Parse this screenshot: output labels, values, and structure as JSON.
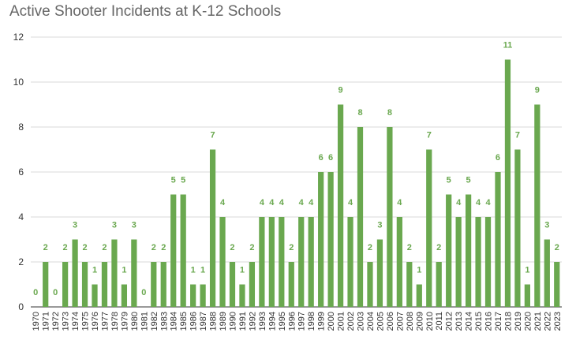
{
  "chart_data": {
    "type": "bar",
    "title": "Active Shooter Incidents at K-12 Schools",
    "xlabel": "",
    "ylabel": "",
    "ylim": [
      0,
      12
    ],
    "yticks": [
      0,
      2,
      4,
      6,
      8,
      10,
      12
    ],
    "grid": true,
    "legend": "none",
    "bar_color": "#6aa84f",
    "label_color": "#6aa84f",
    "grid_color": "#d9d9d9",
    "categories": [
      "1970",
      "1971",
      "1972",
      "1973",
      "1974",
      "1975",
      "1976",
      "1977",
      "1978",
      "1979",
      "1980",
      "1981",
      "1982",
      "1983",
      "1984",
      "1985",
      "1986",
      "1987",
      "1988",
      "1989",
      "1990",
      "1991",
      "1992",
      "1993",
      "1994",
      "1995",
      "1996",
      "1997",
      "1998",
      "1999",
      "2000",
      "2001",
      "2002",
      "2003",
      "2004",
      "2005",
      "2006",
      "2007",
      "2008",
      "2009",
      "2010",
      "2011",
      "2012",
      "2013",
      "2014",
      "2015",
      "2016",
      "2017",
      "2018",
      "2019",
      "2020",
      "2021",
      "2022",
      "2023"
    ],
    "values": [
      0,
      2,
      0,
      2,
      3,
      2,
      1,
      2,
      3,
      1,
      3,
      0,
      2,
      2,
      5,
      5,
      1,
      1,
      7,
      4,
      2,
      1,
      2,
      4,
      4,
      4,
      2,
      4,
      4,
      6,
      6,
      9,
      4,
      8,
      2,
      3,
      8,
      4,
      2,
      1,
      7,
      2,
      5,
      4,
      5,
      4,
      4,
      6,
      11,
      7,
      1,
      9,
      3,
      2
    ]
  }
}
